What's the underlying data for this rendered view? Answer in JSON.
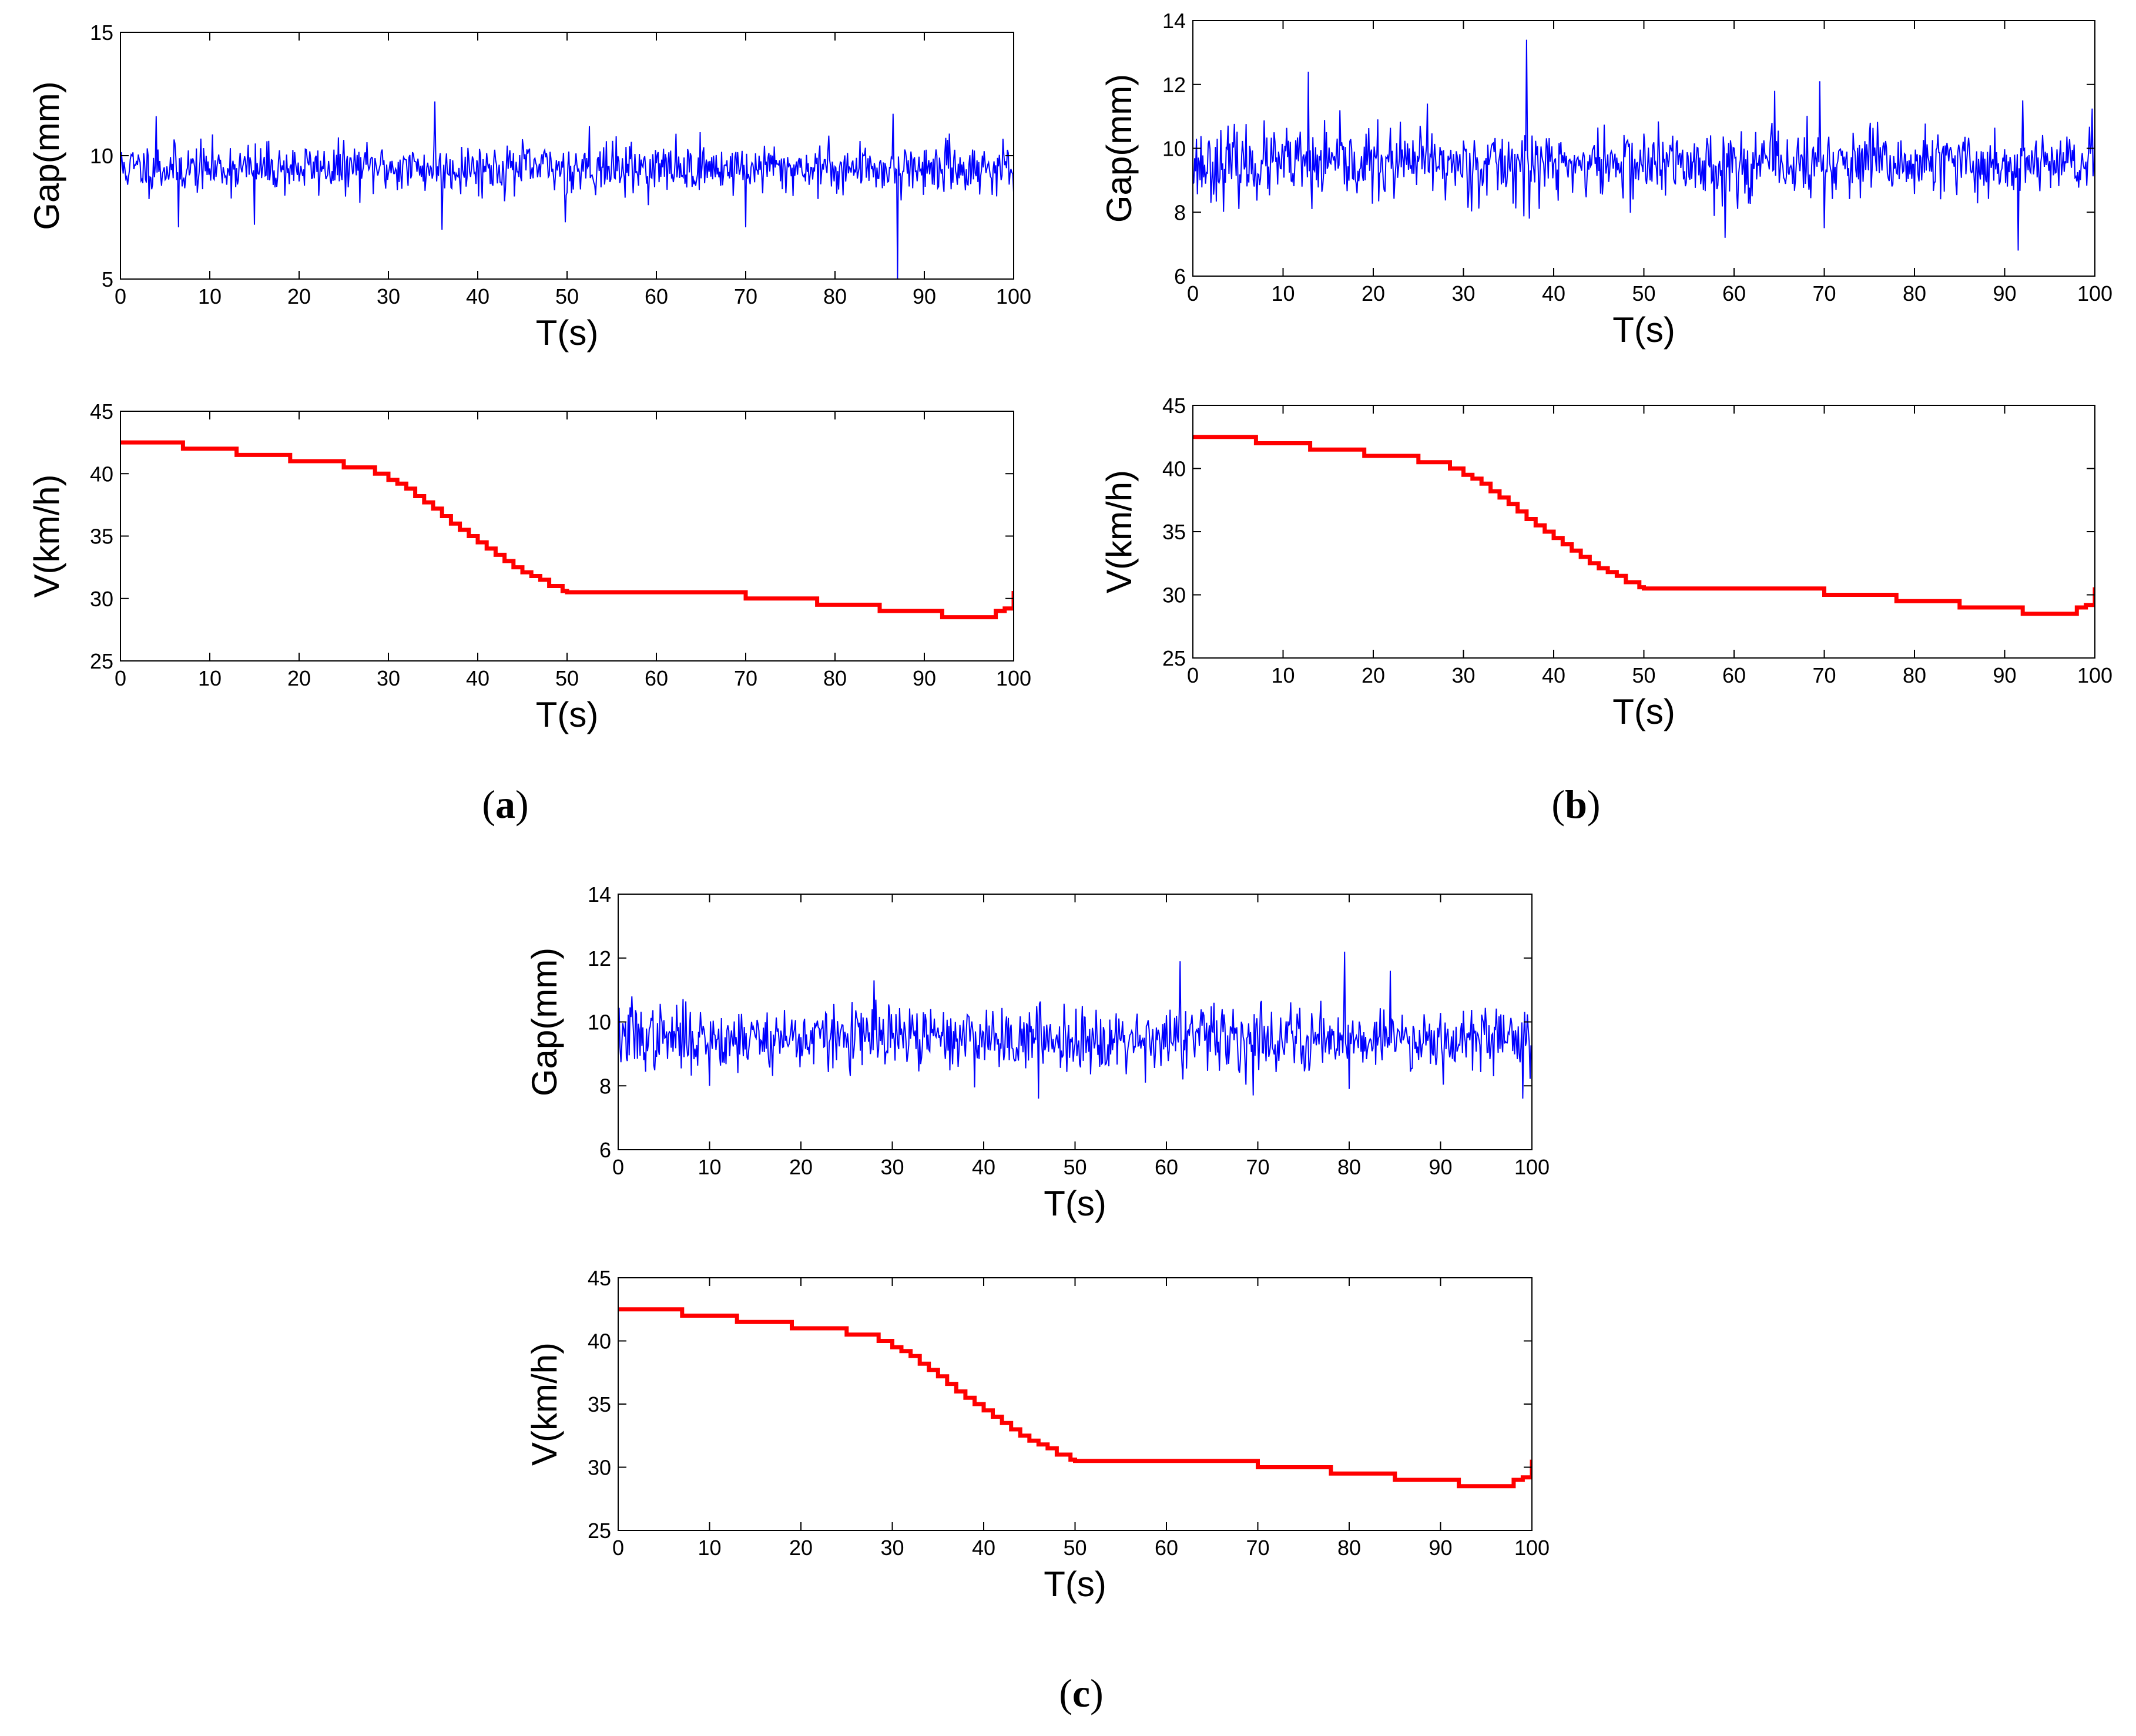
{
  "figure": {
    "panels": [
      {
        "id": "a",
        "caption_open": "(",
        "caption_letter": "a",
        "caption_close": ")"
      },
      {
        "id": "b",
        "caption_open": "(",
        "caption_letter": "b",
        "caption_close": ")"
      },
      {
        "id": "c",
        "caption_open": "(",
        "caption_letter": "c",
        "caption_close": ")"
      }
    ]
  },
  "colors": {
    "gap_series": "#0000ff",
    "speed_series": "#ff0000",
    "axes": "#000000"
  },
  "chart_data": [
    {
      "panel": "a",
      "role": "gap",
      "type": "line",
      "title": "",
      "xlabel": "T(s)",
      "ylabel": "Gap(mm)",
      "xlim": [
        0,
        100
      ],
      "ylim": [
        5,
        15
      ],
      "xticks": [
        0,
        10,
        20,
        30,
        40,
        50,
        60,
        70,
        80,
        90,
        100
      ],
      "yticks": [
        5,
        10,
        15
      ],
      "series": [
        {
          "name": "Gap",
          "color": "#0000ff",
          "baseline": 9.5,
          "noise_sd": 0.5,
          "seed": 11,
          "spikes": [
            [
              4,
              11.6
            ],
            [
              6.5,
              7.1
            ],
            [
              15,
              7.2
            ],
            [
              35.2,
              12.2
            ],
            [
              36,
              7.0
            ],
            [
              49.8,
              7.3
            ],
            [
              52.5,
              11.2
            ],
            [
              70,
              7.1
            ],
            [
              86.5,
              11.7
            ],
            [
              87,
              5.0
            ]
          ]
        }
      ]
    },
    {
      "panel": "a",
      "role": "speed",
      "type": "line",
      "title": "",
      "xlabel": "T(s)",
      "ylabel": "V(km/h)",
      "xlim": [
        0,
        100
      ],
      "ylim": [
        25,
        45
      ],
      "xticks": [
        0,
        10,
        20,
        30,
        40,
        50,
        60,
        70,
        80,
        90,
        100
      ],
      "yticks": [
        25,
        30,
        35,
        40,
        45
      ],
      "series": [
        {
          "name": "V",
          "color": "#ff0000",
          "x": [
            0,
            6.5,
            7,
            12,
            13,
            18,
            19,
            24,
            25,
            28.5,
            30,
            31,
            32,
            33,
            34,
            35,
            36,
            37,
            38,
            39,
            40,
            41,
            42,
            43,
            44,
            45,
            46,
            47,
            48,
            49.5,
            50,
            55,
            60,
            65,
            70,
            72,
            78,
            80,
            85,
            86,
            92,
            95,
            97,
            98,
            99,
            100
          ],
          "y": [
            42.5,
            42.5,
            42.0,
            42.0,
            41.5,
            41.5,
            41.0,
            41.0,
            40.5,
            40.0,
            39.5,
            39.2,
            38.8,
            38.2,
            37.7,
            37.2,
            36.6,
            36.0,
            35.5,
            35.0,
            34.5,
            34.0,
            33.5,
            33.0,
            32.5,
            32.1,
            31.8,
            31.5,
            31.0,
            30.6,
            30.5,
            30.5,
            30.5,
            30.5,
            30.0,
            30.0,
            29.5,
            29.5,
            29.0,
            29.0,
            28.5,
            28.5,
            28.5,
            29.0,
            29.2,
            30.6
          ]
        }
      ]
    },
    {
      "panel": "b",
      "role": "gap",
      "type": "line",
      "title": "",
      "xlabel": "T(s)",
      "ylabel": "Gap(mm)",
      "xlim": [
        0,
        100
      ],
      "ylim": [
        6,
        14
      ],
      "xticks": [
        0,
        10,
        20,
        30,
        40,
        50,
        60,
        70,
        80,
        90,
        100
      ],
      "yticks": [
        6,
        8,
        10,
        12,
        14
      ],
      "series": [
        {
          "name": "Gap",
          "color": "#0000ff",
          "baseline": 9.5,
          "noise_sd": 0.55,
          "seed": 23,
          "spikes": [
            [
              12.8,
              12.4
            ],
            [
              13.2,
              8.1
            ],
            [
              26,
              11.4
            ],
            [
              37,
              13.4
            ],
            [
              37.3,
              7.8
            ],
            [
              59,
              7.2
            ],
            [
              64.5,
              11.8
            ],
            [
              69.5,
              12.1
            ],
            [
              70,
              7.5
            ],
            [
              91.5,
              6.8
            ],
            [
              92,
              11.5
            ]
          ]
        }
      ]
    },
    {
      "panel": "b",
      "role": "speed",
      "type": "line",
      "title": "",
      "xlabel": "T(s)",
      "ylabel": "V(km/h)",
      "xlim": [
        0,
        100
      ],
      "ylim": [
        25,
        45
      ],
      "xticks": [
        0,
        10,
        20,
        30,
        40,
        50,
        60,
        70,
        80,
        90,
        100
      ],
      "yticks": [
        25,
        30,
        35,
        40,
        45
      ],
      "series": [
        {
          "name": "V",
          "color": "#ff0000",
          "x": [
            0,
            6.5,
            7,
            12,
            13,
            18,
            19,
            24,
            25,
            28.5,
            30,
            31,
            32,
            33,
            34,
            35,
            36,
            37,
            38,
            39,
            40,
            41,
            42,
            43,
            44,
            45,
            46,
            47,
            48,
            49.5,
            50,
            55,
            60,
            65,
            70,
            72,
            78,
            80,
            85,
            86,
            92,
            95,
            97,
            98,
            99,
            100
          ],
          "y": [
            42.5,
            42.5,
            42.0,
            42.0,
            41.5,
            41.5,
            41.0,
            41.0,
            40.5,
            40.0,
            39.5,
            39.2,
            38.8,
            38.2,
            37.7,
            37.2,
            36.6,
            36.0,
            35.5,
            35.0,
            34.5,
            34.0,
            33.5,
            33.0,
            32.5,
            32.1,
            31.8,
            31.5,
            31.0,
            30.6,
            30.5,
            30.5,
            30.5,
            30.5,
            30.0,
            30.0,
            29.5,
            29.5,
            29.0,
            29.0,
            28.5,
            28.5,
            28.5,
            29.0,
            29.2,
            30.6
          ]
        }
      ]
    },
    {
      "panel": "c",
      "role": "gap",
      "type": "line",
      "title": "",
      "xlabel": "T(s)",
      "ylabel": "Gap(mm)",
      "xlim": [
        0,
        100
      ],
      "ylim": [
        6,
        14
      ],
      "xticks": [
        0,
        10,
        20,
        30,
        40,
        50,
        60,
        70,
        80,
        90,
        100
      ],
      "yticks": [
        6,
        8,
        10,
        12,
        14
      ],
      "series": [
        {
          "name": "Gap",
          "color": "#0000ff",
          "baseline": 9.5,
          "noise_sd": 0.5,
          "seed": 37,
          "spikes": [
            [
              1.5,
              10.8
            ],
            [
              10,
              8.0
            ],
            [
              28,
              11.3
            ],
            [
              46,
              7.6
            ],
            [
              61.5,
              11.9
            ],
            [
              61.8,
              8.2
            ],
            [
              69.5,
              7.7
            ],
            [
              79.5,
              12.2
            ],
            [
              80,
              7.9
            ],
            [
              84.5,
              11.6
            ],
            [
              99,
              7.6
            ]
          ]
        }
      ]
    },
    {
      "panel": "c",
      "role": "speed",
      "type": "line",
      "title": "",
      "xlabel": "T(s)",
      "ylabel": "V(km/h)",
      "xlim": [
        0,
        100
      ],
      "ylim": [
        25,
        45
      ],
      "xticks": [
        0,
        10,
        20,
        30,
        40,
        50,
        60,
        70,
        80,
        90,
        100
      ],
      "yticks": [
        25,
        30,
        35,
        40,
        45
      ],
      "series": [
        {
          "name": "V",
          "color": "#ff0000",
          "x": [
            0,
            6.5,
            7,
            12,
            13,
            18,
            19,
            24,
            25,
            28.5,
            30,
            31,
            32,
            33,
            34,
            35,
            36,
            37,
            38,
            39,
            40,
            41,
            42,
            43,
            44,
            45,
            46,
            47,
            48,
            49.5,
            50,
            55,
            60,
            65,
            70,
            72,
            78,
            80,
            85,
            86,
            92,
            95,
            97,
            98,
            99,
            100
          ],
          "y": [
            42.5,
            42.5,
            42.0,
            42.0,
            41.5,
            41.5,
            41.0,
            41.0,
            40.5,
            40.0,
            39.5,
            39.2,
            38.8,
            38.2,
            37.7,
            37.2,
            36.6,
            36.0,
            35.5,
            35.0,
            34.5,
            34.0,
            33.5,
            33.0,
            32.5,
            32.1,
            31.8,
            31.5,
            31.0,
            30.6,
            30.5,
            30.5,
            30.5,
            30.5,
            30.0,
            30.0,
            29.5,
            29.5,
            29.0,
            29.0,
            28.5,
            28.5,
            28.5,
            29.0,
            29.2,
            30.6
          ]
        }
      ]
    }
  ]
}
